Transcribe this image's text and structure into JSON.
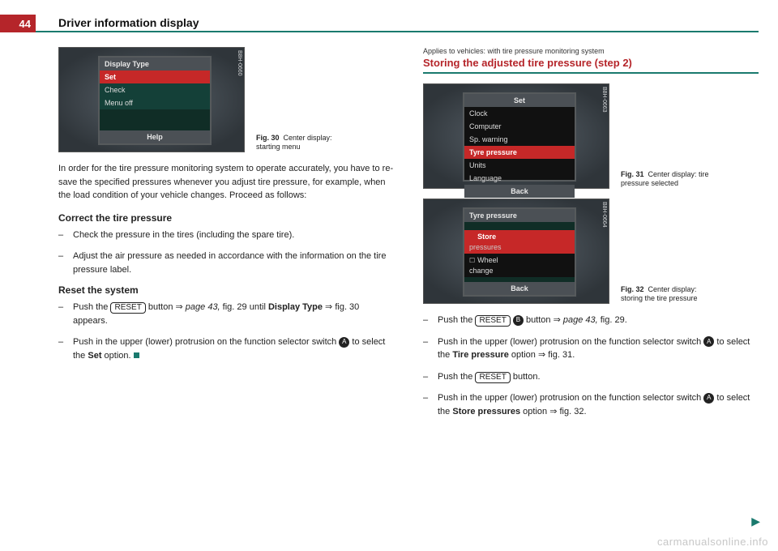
{
  "page_number": "44",
  "header": "Driver information display",
  "left": {
    "fig30": {
      "tag": "B8H-0660",
      "screen": {
        "title": "Display Type",
        "rows": [
          "Set",
          "Check",
          "Menu off"
        ],
        "footer": "Help"
      },
      "caption_bold": "Fig. 30",
      "caption": "Center display: starting menu"
    },
    "intro": "In order for the tire pressure monitoring system to operate accurately, you have to re-save the specified pressures whenever you adjust tire pressure, for example, when the load condition of your vehicle changes. Proceed as follows:",
    "h_correct": "Correct the tire pressure",
    "b1": "Check the pressure in the tires (including the spare tire).",
    "b2": "Adjust the air pressure as needed in accordance with the information on the tire pressure label.",
    "h_reset": "Reset the system",
    "b3a": "Push the ",
    "b3b": " button ⇒ ",
    "b3c": "page 43,",
    "b3d": " fig. 29 until ",
    "b3e": "Display Type",
    "b3f": " ⇒ fig. 30 appears.",
    "b4a": "Push in the upper (lower) protrusion on the function selector switch ",
    "b4b": " to select the ",
    "b4c": "Set",
    "b4d": " option.",
    "reset_label": "RESET",
    "circ_a": "A"
  },
  "right": {
    "applies": "Applies to vehicles: with tire pressure monitoring system",
    "title": "Storing the adjusted tire pressure (step 2)",
    "fig31": {
      "tag": "B8H-0663",
      "screen": {
        "title": "Set",
        "rows": [
          "Clock",
          "Computer",
          "Sp. warning",
          "Tyre pressure",
          "Units",
          "Language"
        ],
        "footer": "Back"
      },
      "caption_bold": "Fig. 31",
      "caption": "Center display: tire pressure selected"
    },
    "fig32": {
      "tag": "B8H-0664",
      "screen": {
        "title": "Tyre pressure",
        "rows": [
          "Store",
          "pressures",
          "Wheel",
          "change"
        ],
        "footer": "Back"
      },
      "caption_bold": "Fig. 32",
      "caption": "Center display: storing the tire pressure"
    },
    "r1a": "Push the ",
    "r1b": " button ⇒ ",
    "r1c": "page 43,",
    "r1d": " fig. 29.",
    "r2a": "Push in the upper (lower) protrusion on the function selector switch ",
    "r2b": " to select the ",
    "r2c": "Tire pressure",
    "r2d": " option ⇒ fig. 31.",
    "r3a": "Push the ",
    "r3b": " button.",
    "r4a": "Push in the upper (lower) protrusion on the function selector switch ",
    "r4b": " to select the ",
    "r4c": "Store pressures",
    "r4d": " option ⇒ fig. 32.",
    "reset_label": "RESET",
    "circ_a": "A",
    "circ_b": "B"
  },
  "watermark": "carmanualsonline.info"
}
